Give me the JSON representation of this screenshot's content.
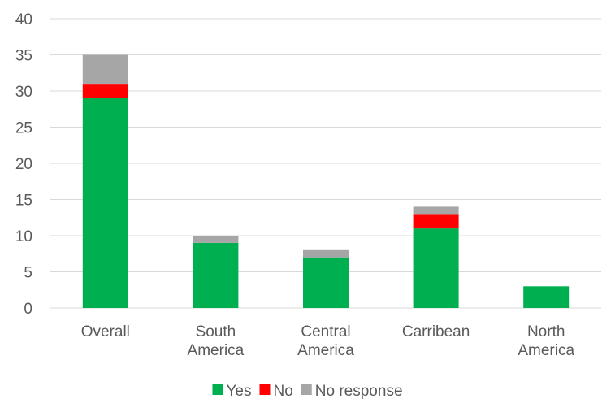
{
  "chart_data": {
    "type": "bar",
    "stacked": true,
    "categories": [
      [
        "Overall"
      ],
      [
        "South",
        "America"
      ],
      [
        "Central",
        "America"
      ],
      [
        "Carribean"
      ],
      [
        "North",
        "America"
      ]
    ],
    "series": [
      {
        "name": "Yes",
        "values": [
          29,
          9,
          7,
          11,
          3
        ],
        "color": "#00b050"
      },
      {
        "name": "No",
        "values": [
          2,
          0,
          0,
          2,
          0
        ],
        "color": "#ff0000"
      },
      {
        "name": "No response",
        "values": [
          4,
          1,
          1,
          1,
          0
        ],
        "color": "#a6a6a6"
      }
    ],
    "ylim": [
      0,
      40
    ],
    "yticks": [
      0,
      5,
      10,
      15,
      20,
      25,
      30,
      35,
      40
    ],
    "grid": true,
    "legend": "bottom"
  }
}
